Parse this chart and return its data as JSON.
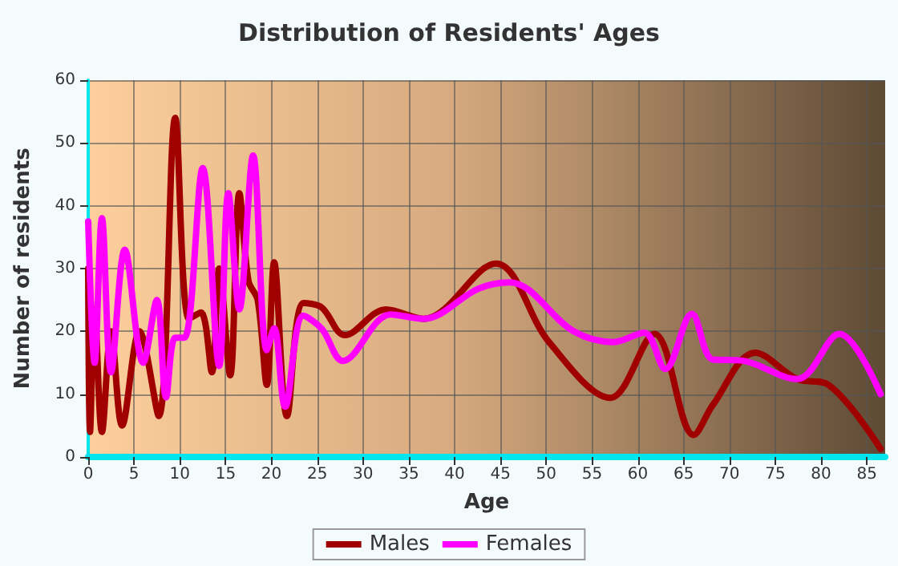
{
  "chart_data": {
    "type": "line",
    "title": "Distribution of Residents' Ages",
    "xlabel": "Age",
    "ylabel": "Number of residents",
    "xlim": [
      0,
      87
    ],
    "xticks": [
      0,
      5,
      10,
      15,
      20,
      25,
      30,
      35,
      40,
      45,
      50,
      55,
      60,
      65,
      70,
      75,
      80,
      85
    ],
    "ylim": [
      0,
      60
    ],
    "yticks": [
      0,
      10,
      20,
      30,
      40,
      50,
      60
    ],
    "grid": true,
    "legend": "bottom",
    "marker": "none",
    "line_style": "solid",
    "series": [
      {
        "name": "Males",
        "color": "#a00000",
        "x": [
          0,
          0.2,
          0.7,
          1.5,
          2.5,
          3.7,
          5.6,
          7.7,
          9.5,
          11,
          12.3,
          13.5,
          14.3,
          15.5,
          16.5,
          17.5,
          18.5,
          19.5,
          20.3,
          21.7,
          23.5,
          25.5,
          28,
          32.5,
          36.6,
          44.5,
          50.3,
          57,
          61.8,
          66.1,
          68.2,
          72.8,
          77.4,
          80.8,
          86.5
        ],
        "values": [
          30,
          4,
          23.5,
          4,
          20,
          5,
          20,
          6.5,
          54,
          22,
          23,
          13.5,
          30,
          13,
          42,
          28,
          25,
          11.5,
          31,
          6.5,
          24.5,
          23.8,
          19.4,
          23.5,
          22,
          30.8,
          18.3,
          9.4,
          19.6,
          3.5,
          8.3,
          16.6,
          12.4,
          11.5,
          1.3
        ]
      },
      {
        "name": "Females",
        "color": "#ff00ff",
        "x": [
          0,
          0.7,
          1.5,
          2.5,
          4,
          6,
          7.5,
          8.5,
          9.5,
          10.5,
          12.5,
          14.3,
          15.3,
          16.5,
          18,
          19.5,
          20.3,
          21.5,
          23.5,
          25.5,
          27.8,
          33,
          36.6,
          42.6,
          46,
          53,
          57.3,
          60.7,
          63,
          65.9,
          68.2,
          71,
          77.4,
          82,
          86.5
        ],
        "values": [
          37.5,
          15,
          38,
          13.5,
          33,
          15,
          25,
          9.5,
          19,
          19,
          46,
          14.5,
          42,
          23.5,
          48,
          17,
          20.5,
          8,
          22.5,
          20.4,
          15.3,
          22.7,
          22,
          26.8,
          27.8,
          20,
          18.3,
          19.8,
          14,
          22.8,
          15.5,
          15.4,
          12.4,
          19.6,
          10
        ]
      }
    ]
  }
}
